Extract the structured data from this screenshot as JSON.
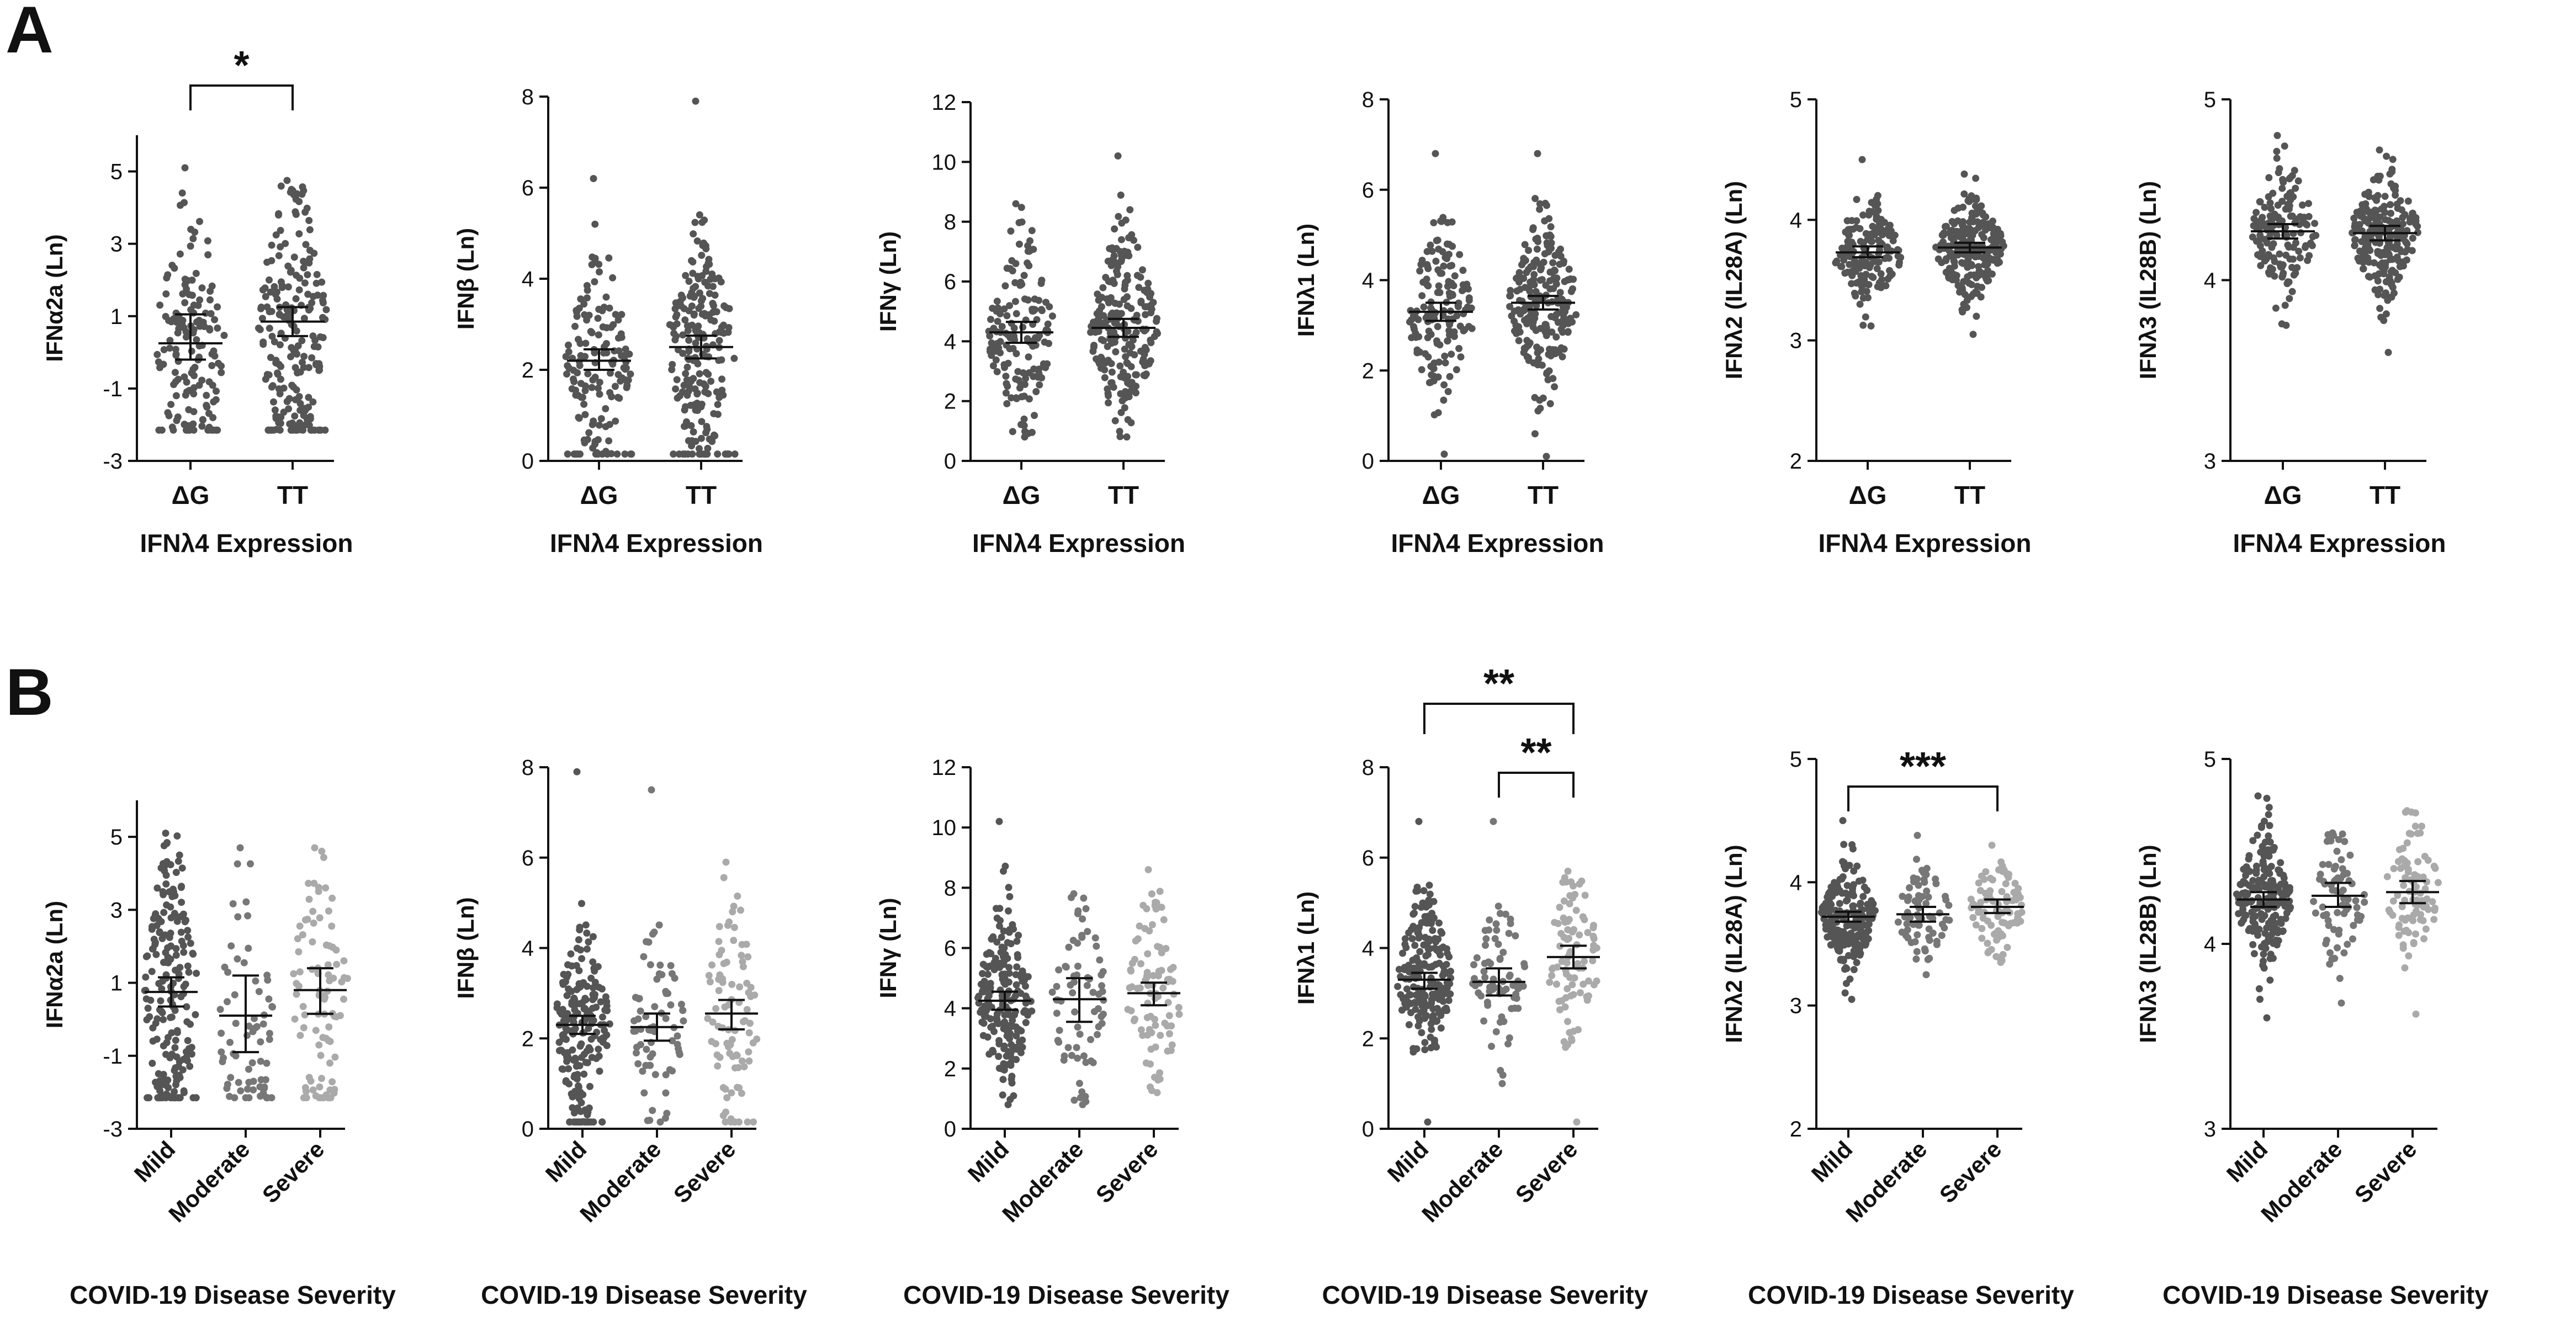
{
  "panel_labels": [
    "A",
    "B"
  ],
  "colors": {
    "ink": "#111111",
    "dot_dark": "#555555",
    "dot_mid": "#777777",
    "dot_light": "#aaaaaa"
  },
  "chart_data": [
    {
      "id": "A1",
      "type": "scatter",
      "title": "",
      "ylabel": "IFNα2a (Ln)",
      "xlabel": "IFNλ4 Expression",
      "ylim": [
        -3,
        6
      ],
      "yticks": [
        -3,
        -1,
        1,
        3,
        5
      ],
      "categories": [
        "ΔG",
        "TT"
      ],
      "series": [
        {
          "name": "ΔG",
          "n": 150,
          "mean": 0.25,
          "ci": [
            -0.2,
            1.05
          ],
          "sd": 2.0,
          "floor": -2.15,
          "min": -2.15,
          "max": 5.1,
          "shade": "dark"
        },
        {
          "name": "TT",
          "n": 220,
          "mean": 0.85,
          "ci": [
            0.45,
            1.25
          ],
          "sd": 2.0,
          "floor": -2.15,
          "min": -2.15,
          "max": 4.75,
          "shade": "dark"
        }
      ],
      "annotations": [
        {
          "from": 0,
          "to": 1,
          "label": "*"
        }
      ]
    },
    {
      "id": "A2",
      "type": "scatter",
      "title": "",
      "ylabel": "IFNβ (Ln)",
      "xlabel": "IFNλ4 Expression",
      "ylim": [
        0,
        8
      ],
      "yticks": [
        0,
        2,
        4,
        6,
        8
      ],
      "categories": [
        "ΔG",
        "TT"
      ],
      "series": [
        {
          "name": "ΔG",
          "n": 150,
          "mean": 2.2,
          "ci": [
            2.0,
            2.45
          ],
          "sd": 1.1,
          "floor": 0.15,
          "min": 0.15,
          "max": 6.2,
          "shade": "dark"
        },
        {
          "name": "TT",
          "n": 220,
          "mean": 2.5,
          "ci": [
            2.25,
            2.75
          ],
          "sd": 1.2,
          "floor": 0.15,
          "min": 0.15,
          "max": 7.9,
          "shade": "dark"
        }
      ],
      "annotations": []
    },
    {
      "id": "A3",
      "type": "scatter",
      "title": "",
      "ylabel": "IFNγ (Ln)",
      "xlabel": "IFNλ4 Expression",
      "ylim": [
        0,
        12
      ],
      "yticks": [
        0,
        2,
        4,
        6,
        8,
        10,
        12
      ],
      "categories": [
        "ΔG",
        "TT"
      ],
      "series": [
        {
          "name": "ΔG",
          "n": 150,
          "mean": 4.3,
          "ci": [
            3.95,
            4.65
          ],
          "sd": 1.6,
          "floor": null,
          "min": 0.8,
          "max": 8.6,
          "shade": "dark"
        },
        {
          "name": "TT",
          "n": 220,
          "mean": 4.45,
          "ci": [
            4.15,
            4.75
          ],
          "sd": 1.6,
          "floor": null,
          "min": 0.8,
          "max": 10.2,
          "shade": "dark"
        }
      ],
      "annotations": []
    },
    {
      "id": "A4",
      "type": "scatter",
      "title": "",
      "ylabel": "IFNλ1 (Ln)",
      "xlabel": "IFNλ4 Expression",
      "ylim": [
        0,
        8
      ],
      "yticks": [
        0,
        2,
        4,
        6,
        8
      ],
      "categories": [
        "ΔG",
        "TT"
      ],
      "series": [
        {
          "name": "ΔG",
          "n": 150,
          "mean": 3.3,
          "ci": [
            3.1,
            3.5
          ],
          "sd": 1.0,
          "floor": null,
          "min": 0.15,
          "max": 6.8,
          "shade": "dark"
        },
        {
          "name": "TT",
          "n": 220,
          "mean": 3.5,
          "ci": [
            3.35,
            3.65
          ],
          "sd": 0.95,
          "floor": null,
          "min": 0.1,
          "max": 6.8,
          "shade": "dark"
        }
      ],
      "annotations": []
    },
    {
      "id": "A5",
      "type": "scatter",
      "title": "",
      "ylabel": "IFNλ2 (IL28A) (Ln)",
      "xlabel": "IFNλ4 Expression",
      "ylim": [
        2,
        5
      ],
      "yticks": [
        2,
        3,
        4,
        5
      ],
      "categories": [
        "ΔG",
        "TT"
      ],
      "series": [
        {
          "name": "ΔG",
          "n": 150,
          "mean": 3.73,
          "ci": [
            3.69,
            3.78
          ],
          "sd": 0.22,
          "floor": null,
          "min": 3.12,
          "max": 4.5,
          "shade": "dark"
        },
        {
          "name": "TT",
          "n": 220,
          "mean": 3.77,
          "ci": [
            3.73,
            3.81
          ],
          "sd": 0.22,
          "floor": null,
          "min": 3.05,
          "max": 4.38,
          "shade": "dark"
        }
      ],
      "annotations": []
    },
    {
      "id": "A6",
      "type": "scatter",
      "title": "",
      "ylabel": "IFNλ3 (IL28B) (Ln)",
      "xlabel": "IFNλ4 Expression",
      "ylim": [
        3,
        5
      ],
      "yticks": [
        3,
        4,
        5
      ],
      "categories": [
        "ΔG",
        "TT"
      ],
      "series": [
        {
          "name": "ΔG",
          "n": 150,
          "mean": 4.27,
          "ci": [
            4.23,
            4.31
          ],
          "sd": 0.18,
          "floor": null,
          "min": 3.75,
          "max": 4.8,
          "shade": "dark"
        },
        {
          "name": "TT",
          "n": 220,
          "mean": 4.26,
          "ci": [
            4.22,
            4.3
          ],
          "sd": 0.18,
          "floor": null,
          "min": 3.6,
          "max": 4.72,
          "shade": "dark"
        }
      ],
      "annotations": []
    },
    {
      "id": "B1",
      "type": "scatter",
      "title": "",
      "ylabel": "IFNα2a (Ln)",
      "xlabel": "COVID-19 Disease Severity",
      "ylim": [
        -3,
        6
      ],
      "yticks": [
        -3,
        -1,
        1,
        3,
        5
      ],
      "categories": [
        "Mild",
        "Moderate",
        "Severe"
      ],
      "series": [
        {
          "name": "Mild",
          "n": 200,
          "mean": 0.75,
          "ci": [
            0.35,
            1.15
          ],
          "sd": 2.0,
          "floor": -2.15,
          "min": -2.15,
          "max": 5.1,
          "shade": "dark"
        },
        {
          "name": "Moderate",
          "n": 70,
          "mean": 0.1,
          "ci": [
            -0.9,
            1.2
          ],
          "sd": 2.0,
          "floor": -2.15,
          "min": -2.15,
          "max": 4.7,
          "shade": "mid"
        },
        {
          "name": "Severe",
          "n": 90,
          "mean": 0.8,
          "ci": [
            0.15,
            1.4
          ],
          "sd": 2.0,
          "floor": -2.15,
          "min": -2.15,
          "max": 4.7,
          "shade": "light"
        }
      ],
      "annotations": []
    },
    {
      "id": "B2",
      "type": "scatter",
      "title": "",
      "ylabel": "IFNβ (Ln)",
      "xlabel": "COVID-19 Disease Severity",
      "ylim": [
        0,
        8
      ],
      "yticks": [
        0,
        2,
        4,
        6,
        8
      ],
      "categories": [
        "Mild",
        "Moderate",
        "Severe"
      ],
      "series": [
        {
          "name": "Mild",
          "n": 200,
          "mean": 2.3,
          "ci": [
            2.1,
            2.5
          ],
          "sd": 1.1,
          "floor": 0.15,
          "min": 0.15,
          "max": 7.9,
          "shade": "dark"
        },
        {
          "name": "Moderate",
          "n": 70,
          "mean": 2.25,
          "ci": [
            1.95,
            2.55
          ],
          "sd": 1.1,
          "floor": null,
          "min": 0.15,
          "max": 7.5,
          "shade": "mid"
        },
        {
          "name": "Severe",
          "n": 90,
          "mean": 2.55,
          "ci": [
            2.2,
            2.85
          ],
          "sd": 1.2,
          "floor": 0.15,
          "min": 0.15,
          "max": 5.9,
          "shade": "light"
        }
      ],
      "annotations": []
    },
    {
      "id": "B3",
      "type": "scatter",
      "title": "",
      "ylabel": "IFNγ (Ln)",
      "xlabel": "COVID-19 Disease Severity",
      "ylim": [
        0,
        12
      ],
      "yticks": [
        0,
        2,
        4,
        6,
        8,
        10,
        12
      ],
      "categories": [
        "Mild",
        "Moderate",
        "Severe"
      ],
      "series": [
        {
          "name": "Mild",
          "n": 200,
          "mean": 4.25,
          "ci": [
            3.95,
            4.55
          ],
          "sd": 1.5,
          "floor": null,
          "min": 0.8,
          "max": 10.2,
          "shade": "dark"
        },
        {
          "name": "Moderate",
          "n": 70,
          "mean": 4.3,
          "ci": [
            3.55,
            5.0
          ],
          "sd": 1.7,
          "floor": null,
          "min": 0.8,
          "max": 7.8,
          "shade": "mid"
        },
        {
          "name": "Severe",
          "n": 90,
          "mean": 4.5,
          "ci": [
            4.1,
            4.85
          ],
          "sd": 1.7,
          "floor": null,
          "min": 1.2,
          "max": 8.6,
          "shade": "light"
        }
      ],
      "annotations": []
    },
    {
      "id": "B4",
      "type": "scatter",
      "title": "",
      "ylabel": "IFNλ1 (Ln)",
      "xlabel": "COVID-19 Disease Severity",
      "ylim": [
        0,
        8
      ],
      "yticks": [
        0,
        2,
        4,
        6,
        8
      ],
      "categories": [
        "Mild",
        "Moderate",
        "Severe"
      ],
      "series": [
        {
          "name": "Mild",
          "n": 200,
          "mean": 3.3,
          "ci": [
            3.1,
            3.45
          ],
          "sd": 0.95,
          "floor": null,
          "min": 0.15,
          "max": 6.8,
          "shade": "dark"
        },
        {
          "name": "Moderate",
          "n": 70,
          "mean": 3.25,
          "ci": [
            2.95,
            3.55
          ],
          "sd": 0.9,
          "floor": null,
          "min": 1.0,
          "max": 6.8,
          "shade": "mid"
        },
        {
          "name": "Severe",
          "n": 90,
          "mean": 3.8,
          "ci": [
            3.55,
            4.05
          ],
          "sd": 0.95,
          "floor": null,
          "min": 0.15,
          "max": 5.7,
          "shade": "light"
        }
      ],
      "annotations": [
        {
          "from": 0,
          "to": 2,
          "label": "**"
        },
        {
          "from": 1,
          "to": 2,
          "label": "**"
        }
      ]
    },
    {
      "id": "B5",
      "type": "scatter",
      "title": "",
      "ylabel": "IFNλ2 (IL28A) (Ln)",
      "xlabel": "COVID-19 Disease Severity",
      "ylim": [
        2,
        5
      ],
      "yticks": [
        2,
        3,
        4,
        5
      ],
      "categories": [
        "Mild",
        "Moderate",
        "Severe"
      ],
      "series": [
        {
          "name": "Mild",
          "n": 200,
          "mean": 3.72,
          "ci": [
            3.68,
            3.76
          ],
          "sd": 0.22,
          "floor": null,
          "min": 3.05,
          "max": 4.5,
          "shade": "dark"
        },
        {
          "name": "Moderate",
          "n": 70,
          "mean": 3.74,
          "ci": [
            3.68,
            3.8
          ],
          "sd": 0.2,
          "floor": null,
          "min": 3.25,
          "max": 4.38,
          "shade": "mid"
        },
        {
          "name": "Severe",
          "n": 90,
          "mean": 3.8,
          "ci": [
            3.75,
            3.86
          ],
          "sd": 0.2,
          "floor": null,
          "min": 3.35,
          "max": 4.3,
          "shade": "light"
        }
      ],
      "annotations": [
        {
          "from": 0,
          "to": 2,
          "label": "***"
        }
      ]
    },
    {
      "id": "B6",
      "type": "scatter",
      "title": "",
      "ylabel": "IFNλ3 (IL28B) (Ln)",
      "xlabel": "COVID-19 Disease Severity",
      "ylim": [
        3,
        5
      ],
      "yticks": [
        3,
        4,
        5
      ],
      "categories": [
        "Mild",
        "Moderate",
        "Severe"
      ],
      "series": [
        {
          "name": "Mild",
          "n": 200,
          "mean": 4.24,
          "ci": [
            4.2,
            4.28
          ],
          "sd": 0.18,
          "floor": null,
          "min": 3.6,
          "max": 4.8,
          "shade": "dark"
        },
        {
          "name": "Moderate",
          "n": 70,
          "mean": 4.26,
          "ci": [
            4.2,
            4.33
          ],
          "sd": 0.18,
          "floor": null,
          "min": 3.68,
          "max": 4.6,
          "shade": "mid"
        },
        {
          "name": "Severe",
          "n": 90,
          "mean": 4.28,
          "ci": [
            4.22,
            4.34
          ],
          "sd": 0.18,
          "floor": null,
          "min": 3.62,
          "max": 4.72,
          "shade": "light"
        }
      ],
      "annotations": []
    }
  ]
}
